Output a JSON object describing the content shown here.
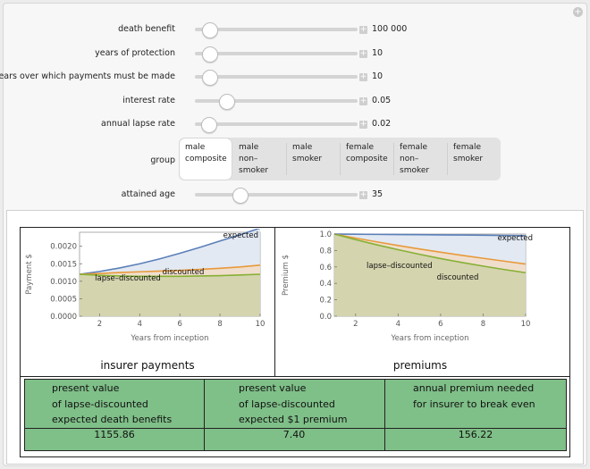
{
  "controls": {
    "death_benefit": {
      "label": "death benefit",
      "value": "100 000",
      "level": 0.05
    },
    "years_protection": {
      "label": "years of protection",
      "value": "10",
      "level": 0.05
    },
    "years_payments": {
      "label": "years over which payments must be made",
      "value": "10",
      "level": 0.05
    },
    "interest_rate": {
      "label": "interest rate",
      "value": "0.05",
      "level": 0.16
    },
    "lapse_rate": {
      "label": "annual lapse rate",
      "value": "0.02",
      "level": 0.04
    },
    "attained_age": {
      "label": "attained age",
      "value": "35",
      "level": 0.25
    }
  },
  "group": {
    "label": "group",
    "options": [
      {
        "lines": [
          "male",
          "composite"
        ],
        "selected": true
      },
      {
        "lines": [
          "male non–",
          "smoker"
        ],
        "selected": false
      },
      {
        "lines": [
          "male",
          "smoker"
        ],
        "selected": false
      },
      {
        "lines": [
          "female",
          "composite"
        ],
        "selected": false
      },
      {
        "lines": [
          "female",
          "non–",
          "smoker"
        ],
        "selected": false
      },
      {
        "lines": [
          "female",
          "smoker"
        ],
        "selected": false
      }
    ]
  },
  "chart_data": [
    {
      "type": "area",
      "title": "insurer payments",
      "xlabel": "Years from inception",
      "ylabel": "Payment $",
      "xlim": [
        1,
        10
      ],
      "ylim": [
        0,
        0.0024
      ],
      "x_ticks": [
        "2",
        "4",
        "6",
        "8",
        "10"
      ],
      "y_ticks": [
        "0.0000",
        "0.0005",
        "0.0010",
        "0.0015",
        "0.0020"
      ],
      "x": [
        1,
        2,
        3,
        4,
        5,
        6,
        7,
        8,
        9,
        10
      ],
      "series": [
        {
          "name": "expected",
          "color": "#5b7fb8",
          "values": [
            0.0012,
            0.00128,
            0.00138,
            0.0015,
            0.00164,
            0.0018,
            0.00197,
            0.00215,
            0.00233,
            0.00252
          ]
        },
        {
          "name": "discounted",
          "color": "#e89a3a",
          "values": [
            0.0012,
            0.00122,
            0.00125,
            0.00127,
            0.00129,
            0.00131,
            0.00134,
            0.00137,
            0.00141,
            0.00146
          ]
        },
        {
          "name": "lapse–discounted",
          "color": "#86b034",
          "values": [
            0.0012,
            0.00117,
            0.00115,
            0.00114,
            0.00114,
            0.00114,
            0.00115,
            0.00116,
            0.00118,
            0.0012
          ]
        }
      ],
      "labels": {
        "expected": "expected",
        "discounted": "discounted",
        "lapse": "lapse–discounted"
      }
    },
    {
      "type": "area",
      "title": "premiums",
      "xlabel": "Years from inception",
      "ylabel": "Premium $",
      "xlim": [
        1,
        10
      ],
      "ylim": [
        0,
        1.0
      ],
      "x_ticks": [
        "2",
        "4",
        "6",
        "8",
        "10"
      ],
      "y_ticks": [
        "0.0",
        "0.2",
        "0.4",
        "0.6",
        "0.8",
        "1.0"
      ],
      "x": [
        1,
        2,
        3,
        4,
        5,
        6,
        7,
        8,
        9,
        10
      ],
      "series": [
        {
          "name": "expected",
          "color": "#5b7fb8",
          "values": [
            1.0,
            0.998,
            0.996,
            0.994,
            0.992,
            0.99,
            0.988,
            0.986,
            0.983,
            0.98
          ]
        },
        {
          "name": "discounted",
          "color": "#e89a3a",
          "values": [
            1.0,
            0.951,
            0.905,
            0.861,
            0.819,
            0.779,
            0.741,
            0.705,
            0.67,
            0.635
          ]
        },
        {
          "name": "lapse–discounted",
          "color": "#86b034",
          "values": [
            1.0,
            0.932,
            0.869,
            0.81,
            0.754,
            0.702,
            0.654,
            0.61,
            0.568,
            0.53
          ]
        }
      ],
      "labels": {
        "expected": "expected",
        "discounted": "discounted",
        "lapse": "lapse–discounted"
      }
    }
  ],
  "table": {
    "headers": [
      [
        "present value",
        "of lapse-discounted",
        "expected death benefits"
      ],
      [
        "present value",
        "of lapse-discounted",
        "expected $1 premium"
      ],
      [
        "annual premium needed",
        "for insurer to break even"
      ]
    ],
    "values": [
      "1155.86",
      "7.40",
      "156.22"
    ],
    "color": "#7fbf88"
  }
}
